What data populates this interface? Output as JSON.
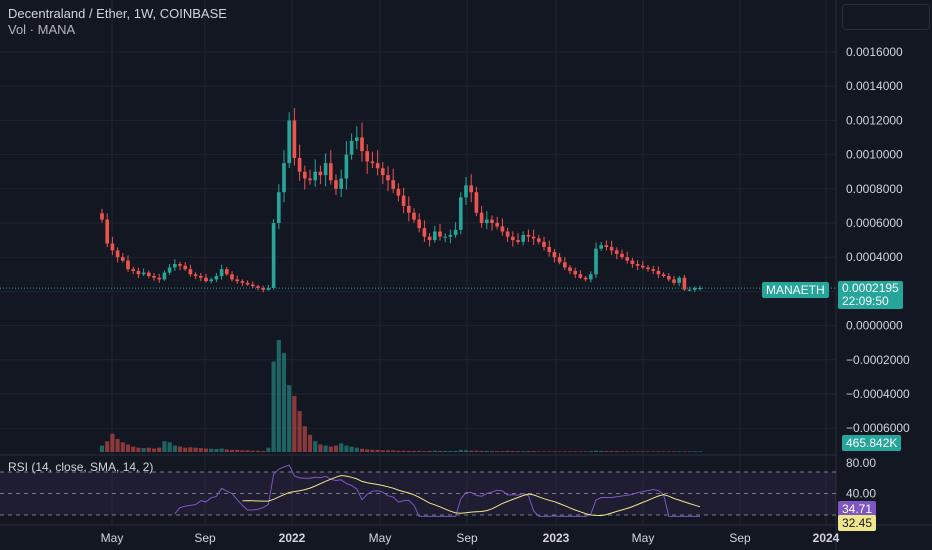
{
  "header": {
    "title": "Decentraland / Ether, 1W, COINBASE",
    "subtitle": "Vol · MANA"
  },
  "rsi": {
    "label": "RSI (14, close, SMA, 14, 2)",
    "value_tag": "34.71",
    "sma_tag": "32.45",
    "upper_band_label": "80.00",
    "middle_label": "40.00"
  },
  "price_tag": {
    "symbol": "MANAETH",
    "price": "0.0002195",
    "countdown": "22:09:50"
  },
  "volume_tag": "465.842K",
  "colors": {
    "background": "#131722",
    "up": "#26a69a",
    "down": "#ef5350",
    "rsi_line": "#7e57c2",
    "rsi_sma": "#f0e68c",
    "grid": "#1f2430",
    "axis_text": "#d1d4dc"
  },
  "chart_data": {
    "type": "candlestick",
    "price_axis_ticks": [
      "0.0016000",
      "0.0014000",
      "0.0012000",
      "0.0010000",
      "0.0008000",
      "0.0006000",
      "0.0004000",
      "0.0002000",
      "0.0000000",
      "−0.0002000",
      "−0.0004000",
      "−0.0006000"
    ],
    "price_axis_values": [
      0.0016,
      0.0014,
      0.0012,
      0.001,
      0.0008,
      0.0006,
      0.0004,
      0.0002,
      0.0,
      -0.0002,
      -0.0004,
      -0.0006
    ],
    "x_axis_labels": [
      "May",
      "Sep",
      "2022",
      "May",
      "Sep",
      "2023",
      "May",
      "Sep",
      "2024"
    ],
    "close_series": [
      0.00062,
      0.00048,
      0.00044,
      0.0004,
      0.00038,
      0.00033,
      0.00032,
      0.0003,
      0.00031,
      0.00029,
      0.00028,
      0.00027,
      0.00031,
      0.00034,
      0.00036,
      0.00035,
      0.00033,
      0.0003,
      0.00029,
      0.00028,
      0.00026,
      0.00027,
      0.00029,
      0.00033,
      0.0003,
      0.00027,
      0.00026,
      0.00025,
      0.00024,
      0.00023,
      0.00022,
      0.00021,
      0.00022,
      0.0006,
      0.00078,
      0.00095,
      0.0012,
      0.00098,
      0.0009,
      0.00086,
      0.00085,
      0.0009,
      0.00088,
      0.00095,
      0.00085,
      0.0008,
      0.00086,
      0.001,
      0.00108,
      0.0011,
      0.00102,
      0.00096,
      0.00095,
      0.00092,
      0.00088,
      0.00085,
      0.0008,
      0.00076,
      0.0007,
      0.00066,
      0.00062,
      0.00057,
      0.00052,
      0.0005,
      0.00055,
      0.00052,
      0.00052,
      0.00053,
      0.00056,
      0.00075,
      0.00082,
      0.00078,
      0.00066,
      0.0006,
      0.00062,
      0.0006,
      0.00058,
      0.00055,
      0.00052,
      0.0005,
      0.00049,
      0.00053,
      0.00052,
      0.00051,
      0.00049,
      0.00046,
      0.00043,
      0.0004,
      0.00037,
      0.00034,
      0.00032,
      0.0003,
      0.00028,
      0.00027,
      0.0003,
      0.00045,
      0.00047,
      0.00046,
      0.00044,
      0.00042,
      0.0004,
      0.00038,
      0.00036,
      0.00035,
      0.00034,
      0.00033,
      0.00032,
      0.0003,
      0.00029,
      0.00027,
      0.00025,
      0.00028,
      0.00021,
      0.00021,
      0.00022,
      0.00022
    ],
    "volume_series": [
      0.3,
      0.5,
      0.85,
      0.6,
      0.45,
      0.35,
      0.25,
      0.2,
      0.18,
      0.2,
      0.16,
      0.2,
      0.5,
      0.45,
      0.3,
      0.25,
      0.2,
      0.22,
      0.2,
      0.18,
      0.16,
      0.15,
      0.14,
      0.16,
      0.12,
      0.1,
      0.1,
      0.08,
      0.08,
      0.06,
      0.06,
      0.05,
      0.2,
      4.2,
      5.2,
      4.6,
      3.1,
      2.6,
      1.9,
      1.2,
      0.8,
      0.5,
      0.35,
      0.3,
      0.25,
      0.3,
      0.4,
      0.3,
      0.25,
      0.2,
      0.15,
      0.12,
      0.1,
      0.1,
      0.08,
      0.08,
      0.07,
      0.06,
      0.06,
      0.05,
      0.05,
      0.05,
      0.04,
      0.05,
      0.06,
      0.05,
      0.05,
      0.05,
      0.05,
      0.1,
      0.08,
      0.06,
      0.06,
      0.05,
      0.05,
      0.04,
      0.04,
      0.04,
      0.05,
      0.04,
      0.04,
      0.04,
      0.04,
      0.04,
      0.03,
      0.03,
      0.03,
      0.03,
      0.03,
      0.03,
      0.03,
      0.03,
      0.03,
      0.03,
      0.04,
      0.06,
      0.05,
      0.04,
      0.04,
      0.04,
      0.03,
      0.03,
      0.03,
      0.03,
      0.03,
      0.03,
      0.03,
      0.03,
      0.03,
      0.03,
      0.03,
      0.03,
      0.03,
      0.03,
      0.03,
      0.03
    ],
    "rsi_axis_labels": [
      "80.00",
      "40.00"
    ]
  }
}
